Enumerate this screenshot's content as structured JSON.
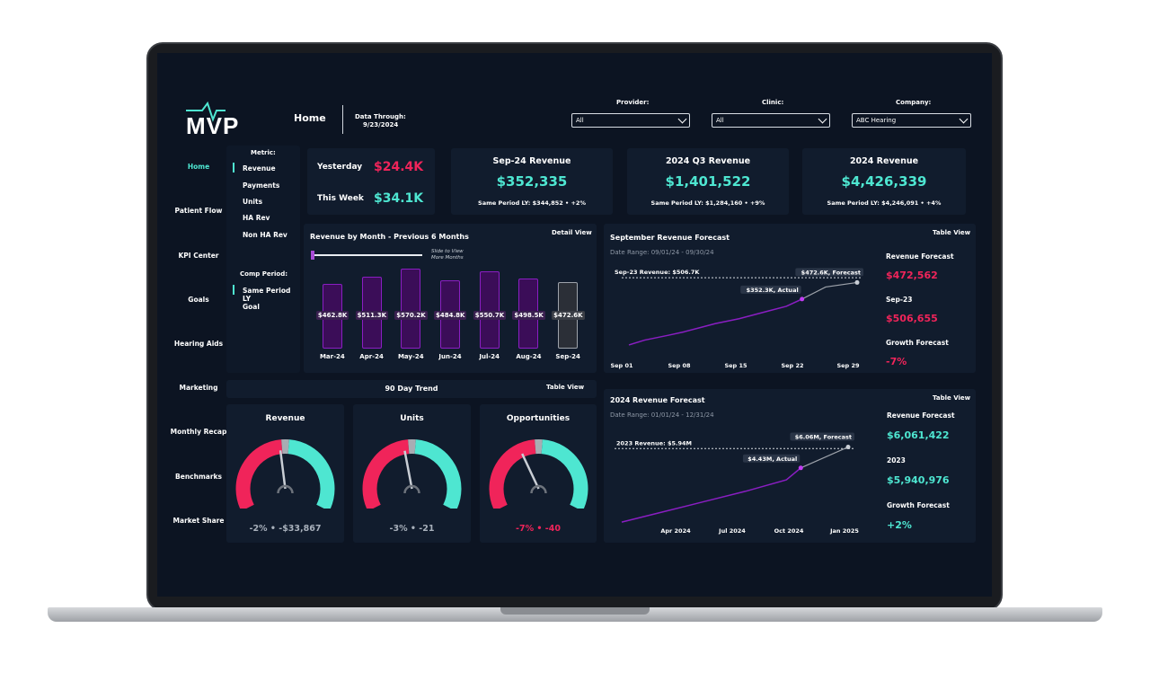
{
  "logo": {
    "text": "MVP"
  },
  "header": {
    "page_title": "Home",
    "data_through_label": "Data Through:",
    "data_through_date": "9/23/2024"
  },
  "filters": {
    "provider": {
      "label": "Provider:",
      "value": "All"
    },
    "clinic": {
      "label": "Clinic:",
      "value": "All"
    },
    "company": {
      "label": "Company:",
      "value": "ABC Hearing"
    }
  },
  "nav": [
    "Home",
    "Patient Flow",
    "KPI Center",
    "Goals",
    "Hearing Aids",
    "Marketing",
    "Monthly Recap",
    "Benchmarks",
    "Market Share"
  ],
  "metric": {
    "label": "Metric:",
    "options": [
      "Revenue",
      "Payments",
      "Units",
      "HA Rev",
      "Non HA Rev"
    ],
    "selected": "Revenue"
  },
  "comp_period": {
    "label": "Comp Period:",
    "options": [
      "Same Period LY",
      "Goal"
    ],
    "selected": "Same Period LY"
  },
  "quick": {
    "yesterday_label": "Yesterday",
    "yesterday_value": "$24.4K",
    "week_label": "This Week",
    "week_value": "$34.1K"
  },
  "kpis": [
    {
      "title": "Sep-24 Revenue",
      "value": "$352,335",
      "sub": "Same Period LY: $344,852 • +2%"
    },
    {
      "title": "2024 Q3 Revenue",
      "value": "$1,401,522",
      "sub": "Same Period LY: $1,284,160 • +9%"
    },
    {
      "title": "2024 Revenue",
      "value": "$4,426,339",
      "sub": "Same Period LY: $4,246,091 • +4%"
    }
  ],
  "revenue_chart": {
    "title": "Revenue by Month - Previous 6 Months",
    "detail_link": "Detail View",
    "slider_hint": "Slide to View More Months",
    "slider_hint_1": "Slide to View",
    "slider_hint_2": "More Months",
    "colors": {
      "actual": "#8a1ec2",
      "forecast": "#6b6f78"
    }
  },
  "chart_data": [
    {
      "type": "bar",
      "title": "Revenue by Month - Previous 6 Months",
      "categories": [
        "Mar-24",
        "Apr-24",
        "May-24",
        "Jun-24",
        "Jul-24",
        "Aug-24",
        "Sep-24"
      ],
      "values": [
        462.8,
        511.3,
        570.2,
        484.8,
        550.7,
        498.5,
        472.6
      ],
      "value_labels": [
        "$462.8K",
        "$511.3K",
        "$570.2K",
        "$484.8K",
        "$550.7K",
        "$498.5K",
        "$472.6K"
      ],
      "ylim": [
        0,
        600
      ]
    },
    {
      "type": "line",
      "title": "September Revenue Forecast",
      "x_ticks": [
        "Sep 01",
        "Sep 08",
        "Sep 15",
        "Sep 22",
        "Sep 29"
      ],
      "actual": [
        [
          1,
          20
        ],
        [
          3,
          55
        ],
        [
          6,
          90
        ],
        [
          8,
          115
        ],
        [
          10,
          145
        ],
        [
          12,
          175
        ],
        [
          15,
          210
        ],
        [
          17,
          240
        ],
        [
          19,
          270
        ],
        [
          21,
          300
        ],
        [
          23,
          352.3
        ]
      ],
      "forecast": [
        [
          23,
          352.3
        ],
        [
          26,
          440
        ],
        [
          30,
          472.6
        ]
      ],
      "reference": 506.7,
      "reference_label": "Sep-23 Revenue: $506.7K",
      "actual_label": "$352.3K, Actual",
      "forecast_label": "$472.6K, Forecast",
      "ylim": [
        0,
        560
      ]
    },
    {
      "type": "line",
      "title": "2024 Revenue Forecast",
      "x_ticks": [
        "Apr 2024",
        "Jul 2024",
        "Oct 2024",
        "Jan 2025"
      ],
      "actual": [
        [
          1,
          0.2
        ],
        [
          3,
          1.0
        ],
        [
          5,
          1.8
        ],
        [
          7,
          2.6
        ],
        [
          9,
          3.5
        ],
        [
          9.7,
          4.43
        ]
      ],
      "forecast": [
        [
          9.7,
          4.43
        ],
        [
          12,
          6.06
        ]
      ],
      "reference": 5.94,
      "reference_label": "2023 Revenue: $5.94M",
      "actual_label": "$4.43M, Actual",
      "forecast_label": "$6.06M, Forecast",
      "ylim": [
        0,
        6.8
      ]
    }
  ],
  "sept_forecast": {
    "title": "September Revenue Forecast",
    "table_link": "Table View",
    "date_range": "Date Range: 09/01/24 - 09/30/24",
    "side": {
      "f_label": "Revenue Forecast",
      "f_value": "$472,562",
      "p_label": "Sep-23",
      "p_value": "$506,655",
      "g_label": "Growth Forecast",
      "g_value": "-7%"
    }
  },
  "year_forecast": {
    "title": "2024 Revenue Forecast",
    "table_link": "Table View",
    "date_range": "Date Range: 01/01/24 - 12/31/24",
    "side": {
      "f_label": "Revenue Forecast",
      "f_value": "$6,061,422",
      "p_label": "2023",
      "p_value": "$5,940,976",
      "g_label": "Growth Forecast",
      "g_value": "+2%"
    }
  },
  "trend": {
    "title": "90 Day Trend",
    "table_link": "Table View"
  },
  "gauges": [
    {
      "title": "Revenue",
      "value": "-2% • -$33,867",
      "pct": -2,
      "color": "#a8b0bb"
    },
    {
      "title": "Units",
      "value": "-3% • -21",
      "pct": -3,
      "color": "#a8b0bb"
    },
    {
      "title": "Opportunities",
      "value": "-7% • -40",
      "pct": -7,
      "color": "#f0245a"
    }
  ],
  "colors": {
    "accent": "#4ee6d1",
    "negative": "#f0245a",
    "purple": "#8a1ec2",
    "bg": "#0c1422",
    "panel": "#111c2d"
  }
}
